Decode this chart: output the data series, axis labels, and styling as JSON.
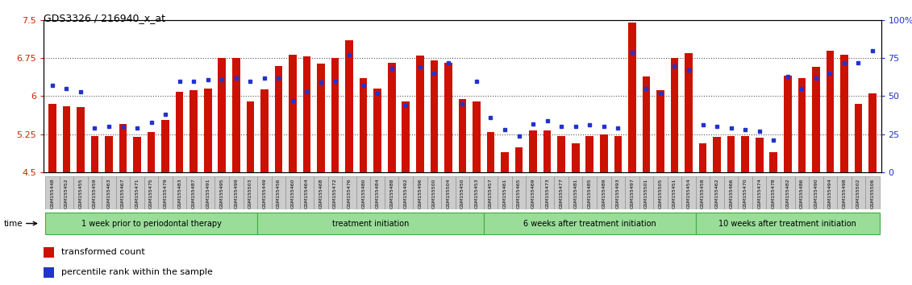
{
  "title": "GDS3326 / 216940_x_at",
  "ylim": [
    4.5,
    7.5
  ],
  "yticks_left": [
    4.5,
    5.25,
    6.0,
    6.75,
    7.5
  ],
  "bar_color": "#cc1100",
  "dot_color": "#2233cc",
  "hline_vals": [
    5.25,
    6.0,
    6.75
  ],
  "groups": [
    {
      "label": "1 week prior to periodontal therapy",
      "start": 0,
      "end": 15
    },
    {
      "label": "treatment initiation",
      "start": 15,
      "end": 31
    },
    {
      "label": "6 weeks after treatment initiation",
      "start": 31,
      "end": 46
    },
    {
      "label": "10 weeks after treatment initiation",
      "start": 46,
      "end": 59
    }
  ],
  "samples": [
    {
      "id": "GSM155448",
      "bar": 5.85,
      "dot": 57
    },
    {
      "id": "GSM155452",
      "bar": 5.8,
      "dot": 55
    },
    {
      "id": "GSM155455",
      "bar": 5.78,
      "dot": 53
    },
    {
      "id": "GSM155459",
      "bar": 5.22,
      "dot": 29
    },
    {
      "id": "GSM155463",
      "bar": 5.21,
      "dot": 30
    },
    {
      "id": "GSM155467",
      "bar": 5.45,
      "dot": 30
    },
    {
      "id": "GSM155471",
      "bar": 5.2,
      "dot": 29
    },
    {
      "id": "GSM155475",
      "bar": 5.3,
      "dot": 33
    },
    {
      "id": "GSM155479",
      "bar": 5.53,
      "dot": 38
    },
    {
      "id": "GSM155483",
      "bar": 6.08,
      "dot": 60
    },
    {
      "id": "GSM155487",
      "bar": 6.12,
      "dot": 60
    },
    {
      "id": "GSM155491",
      "bar": 6.15,
      "dot": 61
    },
    {
      "id": "GSM155495",
      "bar": 6.75,
      "dot": 61
    },
    {
      "id": "GSM155499",
      "bar": 6.75,
      "dot": 62
    },
    {
      "id": "GSM155503",
      "bar": 5.9,
      "dot": 60
    },
    {
      "id": "GSM155449",
      "bar": 6.14,
      "dot": 62
    },
    {
      "id": "GSM155456",
      "bar": 6.6,
      "dot": 62
    },
    {
      "id": "GSM155460",
      "bar": 6.82,
      "dot": 47
    },
    {
      "id": "GSM155464",
      "bar": 6.78,
      "dot": 53
    },
    {
      "id": "GSM155468",
      "bar": 6.64,
      "dot": 59
    },
    {
      "id": "GSM155472",
      "bar": 6.75,
      "dot": 60
    },
    {
      "id": "GSM155476",
      "bar": 7.1,
      "dot": 77
    },
    {
      "id": "GSM155480",
      "bar": 6.35,
      "dot": 57
    },
    {
      "id": "GSM155484",
      "bar": 6.15,
      "dot": 52
    },
    {
      "id": "GSM155488",
      "bar": 6.65,
      "dot": 68
    },
    {
      "id": "GSM155492",
      "bar": 5.9,
      "dot": 44
    },
    {
      "id": "GSM155496",
      "bar": 6.8,
      "dot": 69
    },
    {
      "id": "GSM155500",
      "bar": 6.7,
      "dot": 65
    },
    {
      "id": "GSM155504",
      "bar": 6.65,
      "dot": 72
    },
    {
      "id": "GSM155450",
      "bar": 5.95,
      "dot": 45
    },
    {
      "id": "GSM155453",
      "bar": 5.9,
      "dot": 60
    },
    {
      "id": "GSM155457",
      "bar": 5.3,
      "dot": 36
    },
    {
      "id": "GSM155461",
      "bar": 4.9,
      "dot": 28
    },
    {
      "id": "GSM155465",
      "bar": 5.0,
      "dot": 24
    },
    {
      "id": "GSM155469",
      "bar": 5.32,
      "dot": 32
    },
    {
      "id": "GSM155473",
      "bar": 5.32,
      "dot": 34
    },
    {
      "id": "GSM155477",
      "bar": 5.21,
      "dot": 30
    },
    {
      "id": "GSM155481",
      "bar": 5.08,
      "dot": 30
    },
    {
      "id": "GSM155485",
      "bar": 5.22,
      "dot": 31
    },
    {
      "id": "GSM155489",
      "bar": 5.25,
      "dot": 30
    },
    {
      "id": "GSM155493",
      "bar": 5.22,
      "dot": 29
    },
    {
      "id": "GSM155497",
      "bar": 7.45,
      "dot": 79
    },
    {
      "id": "GSM155501",
      "bar": 6.38,
      "dot": 55
    },
    {
      "id": "GSM155505",
      "bar": 6.12,
      "dot": 52
    },
    {
      "id": "GSM155451",
      "bar": 6.75,
      "dot": 70
    },
    {
      "id": "GSM155454",
      "bar": 6.85,
      "dot": 67
    },
    {
      "id": "GSM155458",
      "bar": 5.08,
      "dot": 31
    },
    {
      "id": "GSM155462",
      "bar": 5.2,
      "dot": 30
    },
    {
      "id": "GSM155466",
      "bar": 5.22,
      "dot": 29
    },
    {
      "id": "GSM155470",
      "bar": 5.21,
      "dot": 28
    },
    {
      "id": "GSM155474",
      "bar": 5.18,
      "dot": 27
    },
    {
      "id": "GSM155478",
      "bar": 4.9,
      "dot": 21
    },
    {
      "id": "GSM155482",
      "bar": 6.4,
      "dot": 63
    },
    {
      "id": "GSM155486",
      "bar": 6.35,
      "dot": 55
    },
    {
      "id": "GSM155490",
      "bar": 6.58,
      "dot": 62
    },
    {
      "id": "GSM155494",
      "bar": 6.9,
      "dot": 65
    },
    {
      "id": "GSM155498",
      "bar": 6.82,
      "dot": 72
    },
    {
      "id": "GSM155502",
      "bar": 5.85,
      "dot": 72
    },
    {
      "id": "GSM155506",
      "bar": 6.05,
      "dot": 80
    }
  ],
  "group_color": "#99dd99",
  "group_border": "#44aa44",
  "tick_label_bg": "#cccccc",
  "tick_label_border": "#888888"
}
